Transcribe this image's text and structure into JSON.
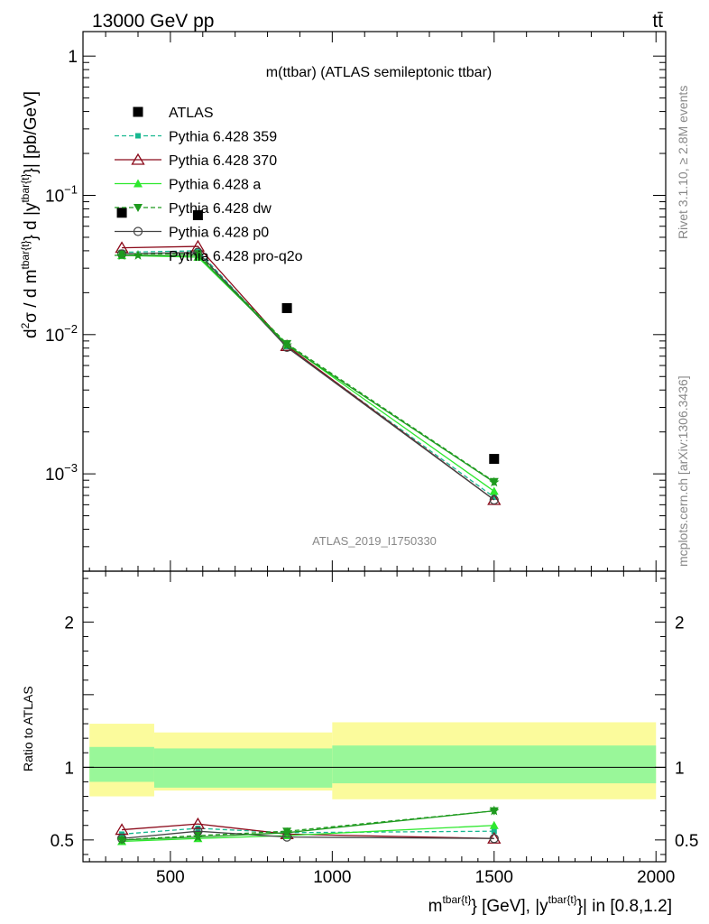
{
  "header": {
    "left": "13000 GeV pp",
    "right": "tt̄"
  },
  "side": {
    "rivet": "Rivet 3.1.10, ≥ 2.8M events",
    "mcplots": "mcplots.cern.ch [arXiv:1306.3436]"
  },
  "chart_data": [
    {
      "type": "scatter",
      "title": "m(ttbar) (ATLAS semileptonic ttbar)",
      "watermark": "ATLAS_2019_I1750330",
      "ylabel_parts": [
        "d",
        "2",
        "σ /  d m",
        "tbar{t}",
        "} d |y",
        "tbar{t}",
        "}| [pb/GeV]"
      ],
      "yscale": "log",
      "ylim": [
        0.0002,
        1.5
      ],
      "xlim": [
        230,
        2030
      ],
      "yticks_major": [
        {
          "v": 1,
          "base": "1",
          "exp": ""
        },
        {
          "v": 0.1,
          "base": "10",
          "exp": "−1"
        },
        {
          "v": 0.01,
          "base": "10",
          "exp": "−2"
        },
        {
          "v": 0.001,
          "base": "10",
          "exp": "−3"
        }
      ],
      "x": [
        350,
        585,
        860,
        1500
      ],
      "series": [
        {
          "name": "ATLAS",
          "color": "#000000",
          "marker": "square",
          "dash": "",
          "values": [
            0.075,
            0.072,
            0.0155,
            0.00128
          ]
        },
        {
          "name": "Pythia 6.428 359",
          "color": "#17b890",
          "marker": "smallsquare",
          "dash": "5,3",
          "values": [
            0.039,
            0.04,
            0.0082,
            0.00068
          ]
        },
        {
          "name": "Pythia 6.428 370",
          "color": "#8b0a1a",
          "marker": "triangle-open",
          "dash": "",
          "values": [
            0.042,
            0.043,
            0.0083,
            0.00065
          ]
        },
        {
          "name": "Pythia 6.428 a",
          "color": "#2ee82e",
          "marker": "triangle",
          "dash": "",
          "values": [
            0.037,
            0.036,
            0.0085,
            0.00075
          ]
        },
        {
          "name": "Pythia 6.428 dw",
          "color": "#1e9a1e",
          "marker": "triangle-down",
          "dash": "5,3",
          "values": [
            0.038,
            0.038,
            0.0086,
            0.00088
          ]
        },
        {
          "name": "Pythia 6.428 p0",
          "color": "#444444",
          "marker": "circle-open",
          "dash": "",
          "values": [
            0.038,
            0.039,
            0.0081,
            0.00065
          ]
        },
        {
          "name": "Pythia 6.428 pro-q2o",
          "color": "#1e9a1e",
          "marker": "star",
          "dash": "",
          "values": [
            0.037,
            0.037,
            0.0084,
            0.00087
          ]
        }
      ]
    },
    {
      "type": "line",
      "ylabel": "Ratio to ATLAS",
      "ylim": [
        0.35,
        2.35
      ],
      "xlim": [
        230,
        2030
      ],
      "xlabel_parts": [
        "m",
        "tbar{t}",
        "} [GeV], |y",
        "tbar{t}",
        "}| in [0.8,1.2]"
      ],
      "xticks": [
        500,
        1000,
        1500,
        2000
      ],
      "yticks": [
        0.5,
        1,
        2
      ],
      "yticklabels": [
        "0.5",
        "1",
        "2"
      ],
      "bands": [
        {
          "x0": 250,
          "x1": 450,
          "inner": [
            0.9,
            1.14
          ],
          "outer": [
            0.8,
            1.3
          ]
        },
        {
          "x0": 450,
          "x1": 1000,
          "inner": [
            0.86,
            1.13
          ],
          "outer": [
            0.84,
            1.24
          ]
        },
        {
          "x0": 1000,
          "x1": 2000,
          "inner": [
            0.89,
            1.15
          ],
          "outer": [
            0.78,
            1.31
          ]
        }
      ],
      "band_colors": {
        "inner": "#99f799",
        "outer": "#fbfb9c"
      },
      "x": [
        350,
        585,
        860,
        1500
      ],
      "series": [
        {
          "name": "Pythia 6.428 359",
          "values": [
            0.54,
            0.58,
            0.55,
            0.56
          ]
        },
        {
          "name": "Pythia 6.428 370",
          "values": [
            0.57,
            0.61,
            0.54,
            0.51
          ]
        },
        {
          "name": "Pythia 6.428 a",
          "values": [
            0.49,
            0.51,
            0.53,
            0.6
          ]
        },
        {
          "name": "Pythia 6.428 dw",
          "values": [
            0.5,
            0.53,
            0.56,
            0.7
          ]
        },
        {
          "name": "Pythia 6.428 p0",
          "values": [
            0.51,
            0.56,
            0.52,
            0.51
          ]
        },
        {
          "name": "Pythia 6.428 pro-q2o",
          "values": [
            0.5,
            0.52,
            0.55,
            0.7
          ]
        }
      ]
    }
  ]
}
